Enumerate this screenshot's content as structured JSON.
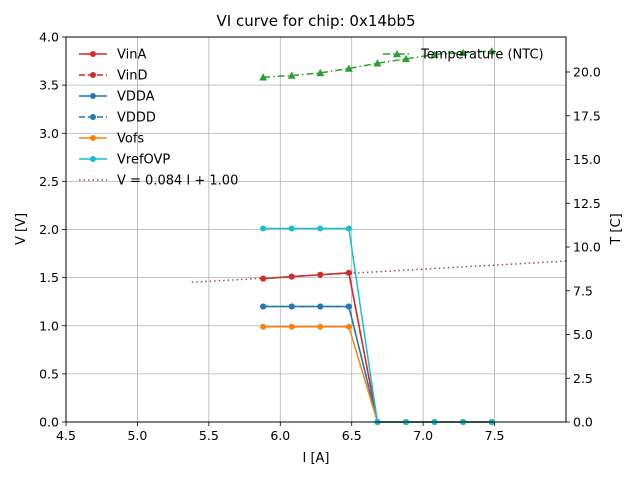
{
  "chart_data": {
    "type": "line",
    "title": "VI curve for chip: 0x14bb5",
    "xlabel": "I [A]",
    "ylabel": "V [V]",
    "y2label": "T [C]",
    "xlim": [
      4.5,
      8.0
    ],
    "ylim": [
      0.0,
      4.0
    ],
    "y2lim": [
      0.0,
      22.0
    ],
    "xticks": [
      "4.5",
      "5.0",
      "5.5",
      "6.0",
      "6.5",
      "7.0",
      "7.5"
    ],
    "yticks": [
      "0.0",
      "0.5",
      "1.0",
      "1.5",
      "2.0",
      "2.5",
      "3.0",
      "3.5",
      "4.0"
    ],
    "y2ticks": [
      "0.0",
      "2.5",
      "5.0",
      "7.5",
      "10.0",
      "12.5",
      "15.0",
      "17.5",
      "20.0"
    ],
    "grid": true,
    "legend_left_position": "upper-left",
    "legend_right_position": "upper-right",
    "series": [
      {
        "name": "VinA",
        "color": "#d62728",
        "style": "solid",
        "marker": "circle",
        "x": [
          5.88,
          6.08,
          6.28,
          6.48,
          6.68,
          6.88,
          7.08,
          7.28,
          7.48
        ],
        "y": [
          1.49,
          1.51,
          1.53,
          1.55,
          0.0,
          0.0,
          0.0,
          0.0,
          0.0
        ]
      },
      {
        "name": "VinD",
        "color": "#d62728",
        "style": "dashed",
        "marker": "circle",
        "x": [
          5.88,
          6.08,
          6.28,
          6.48,
          6.68,
          6.88,
          7.08,
          7.28,
          7.48
        ],
        "y": [
          1.49,
          1.51,
          1.53,
          1.55,
          0.0,
          0.0,
          0.0,
          0.0,
          0.0
        ]
      },
      {
        "name": "VDDA",
        "color": "#1f77b4",
        "style": "solid",
        "marker": "circle",
        "x": [
          5.88,
          6.08,
          6.28,
          6.48,
          6.68,
          6.88,
          7.08,
          7.28,
          7.48
        ],
        "y": [
          1.2,
          1.2,
          1.2,
          1.2,
          0.0,
          0.0,
          0.0,
          0.0,
          0.0
        ]
      },
      {
        "name": "VDDD",
        "color": "#1f77b4",
        "style": "dashed",
        "marker": "circle",
        "x": [
          5.88,
          6.08,
          6.28,
          6.48,
          6.68,
          6.88,
          7.08,
          7.28,
          7.48
        ],
        "y": [
          1.2,
          1.2,
          1.2,
          1.2,
          0.0,
          0.0,
          0.0,
          0.0,
          0.0
        ]
      },
      {
        "name": "Vofs",
        "color": "#ff7f0e",
        "style": "solid",
        "marker": "circle",
        "x": [
          5.88,
          6.08,
          6.28,
          6.48,
          6.68,
          6.88,
          7.08,
          7.28,
          7.48
        ],
        "y": [
          0.99,
          0.99,
          0.99,
          0.99,
          0.0,
          0.0,
          0.0,
          0.0,
          0.0
        ]
      },
      {
        "name": "VrefOVP",
        "color": "#17becf",
        "style": "solid",
        "marker": "circle",
        "x": [
          5.88,
          6.08,
          6.28,
          6.48,
          6.68,
          6.88,
          7.08,
          7.28,
          7.48
        ],
        "y": [
          2.01,
          2.01,
          2.01,
          2.01,
          0.0,
          0.0,
          0.0,
          0.0,
          0.0
        ]
      },
      {
        "name": "V = 0.084 I + 1.00",
        "color": "#8c564b",
        "style": "dotted",
        "marker": "none",
        "x": [
          5.38,
          8.0
        ],
        "y": [
          1.452,
          1.672
        ]
      }
    ],
    "series_right": [
      {
        "name": "Temperature (NTC)",
        "color": "#2ca02c",
        "style": "dashdot",
        "marker": "triangle",
        "x": [
          5.88,
          6.08,
          6.28,
          6.48,
          6.68,
          6.88,
          7.08,
          7.28,
          7.48
        ],
        "y": [
          19.7,
          19.8,
          19.95,
          20.2,
          20.5,
          20.75,
          21.0,
          21.1,
          21.2
        ]
      }
    ]
  }
}
